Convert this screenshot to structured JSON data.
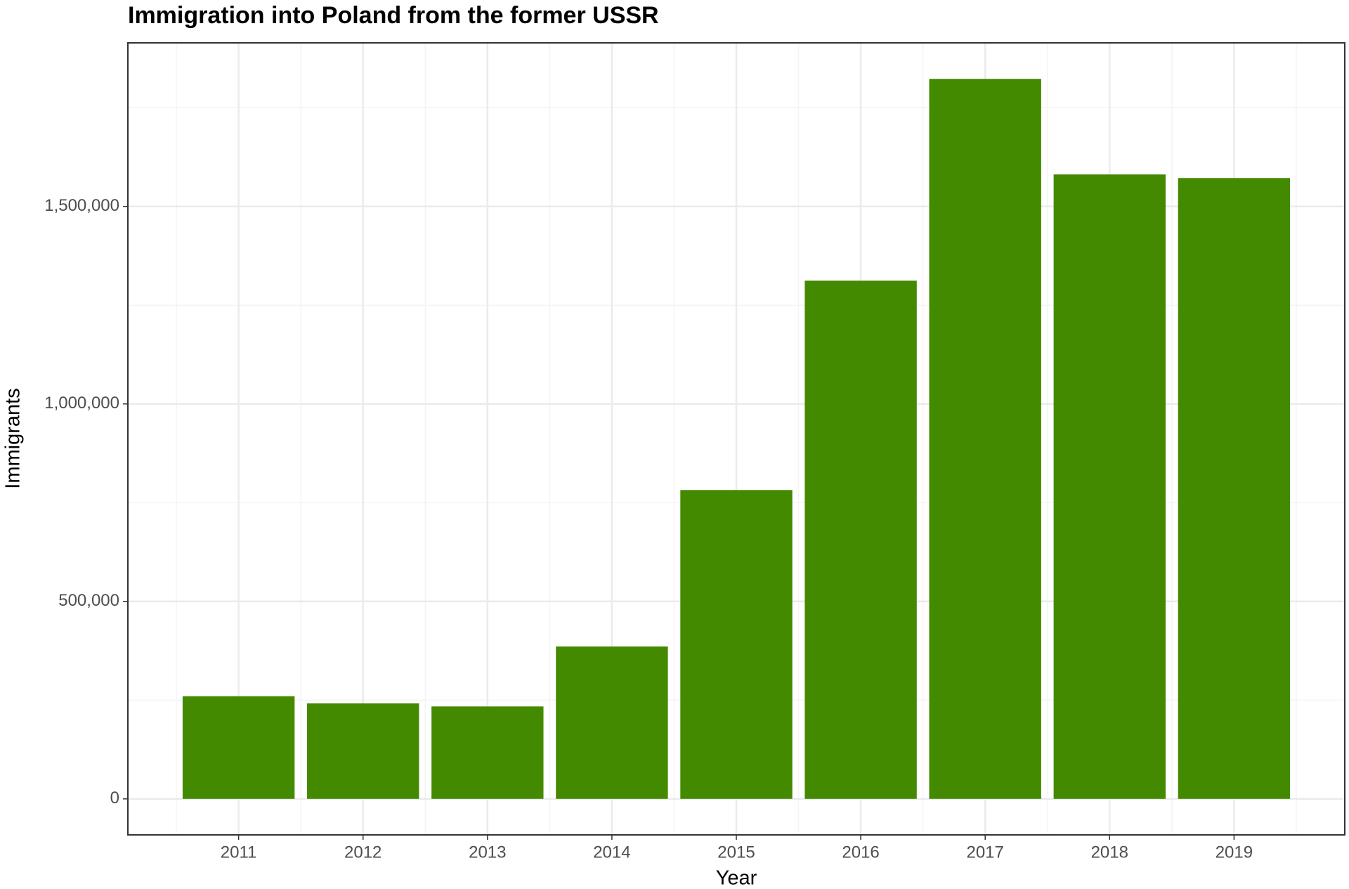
{
  "chart_data": {
    "type": "bar",
    "title": "Immigration into Poland from the former USSR",
    "x_label": "Year",
    "y_label": "Immigrants",
    "categories": [
      "2011",
      "2012",
      "2013",
      "2014",
      "2015",
      "2016",
      "2017",
      "2018",
      "2019"
    ],
    "values": [
      260000,
      242000,
      234000,
      386000,
      782000,
      1312000,
      1823000,
      1581000,
      1572000
    ],
    "color": "#438a00",
    "ylim": [
      -91150,
      1914150
    ],
    "yticks": [
      0,
      {
        "value": 500000,
        "label": "500,000"
      },
      {
        "value": 1000000,
        "label": "1,000,000"
      },
      {
        "value": 1500000,
        "label": "1,500,000"
      }
    ],
    "minor_yticks": [
      250000,
      750000,
      1250000,
      1750000
    ],
    "grid": true
  }
}
